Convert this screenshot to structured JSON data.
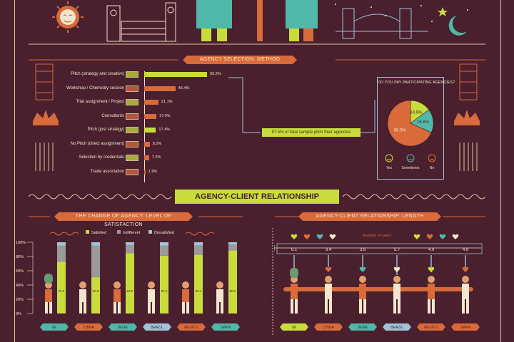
{
  "colors": {
    "bg": "#4a1f2e",
    "green": "#c8dc3c",
    "orange": "#d96a3a",
    "teal": "#4fb8a8",
    "cream": "#f2e6cc",
    "gray": "#9a9a9a",
    "blue": "#9fc4d8"
  },
  "method": {
    "title": "AGENCY SELECTION: METHOD",
    "items": [
      {
        "label": "Pitch (strategy and creative)",
        "value": 93.2,
        "text": "93.2%"
      },
      {
        "label": "Workshop / Chemistry session",
        "value": 46.4,
        "text": "46.4%"
      },
      {
        "label": "Trial assignment / Project",
        "value": 21.1,
        "text": "21.1%"
      },
      {
        "label": "Consultants",
        "value": 17.9,
        "text": "17.9%"
      },
      {
        "label": "Pitch (just strategy)",
        "value": 17.4,
        "text": "17.4%"
      },
      {
        "label": "No Pitch (direct assignment)",
        "value": 8.2,
        "text": "8.2%"
      },
      {
        "label": "Selection by credentials",
        "value": 7.2,
        "text": "7.2%"
      },
      {
        "label": "Trade association",
        "value": 1.9,
        "text": "1.9%"
      }
    ],
    "callout": "97.5% of total sample pitch their agencies"
  },
  "pay": {
    "title": "DO YOU PAY PARTICIPATING AGENCIES?",
    "slices": [
      {
        "name": "Yes",
        "value": 68.3,
        "text": "68.3%"
      },
      {
        "name": "Sometimes",
        "value": 14.9,
        "text": "14.9%"
      },
      {
        "name": "No",
        "value": 16.8,
        "text": "16.8%"
      }
    ],
    "legend": [
      "Yes",
      "Sometimes",
      "No"
    ]
  },
  "relationship": {
    "title": "AGENCY-CLIENT RELATIONSHIP"
  },
  "chart_data": [
    {
      "type": "bar",
      "title": "THE CHANGE OF AGENCY: LEVEL OF SATISFACTION",
      "categories": [
        "UK",
        "CHINA",
        "INDIA",
        "BRAZIL",
        "MEXICO",
        "SPAIN"
      ],
      "series": [
        {
          "name": "Satisfied",
          "values": [
            72.6,
            50.9,
            84.8,
            81.2,
            82.4,
            88.6
          ]
        },
        {
          "name": "Indifferent",
          "values": [
            19,
            33,
            8,
            10,
            10,
            5
          ]
        },
        {
          "name": "Dissatisfied",
          "values": [
            9,
            9,
            7,
            9,
            8,
            6
          ]
        }
      ],
      "ylim": [
        0,
        100
      ],
      "ticks": [
        "100%",
        "80%",
        "60%",
        "40%",
        "20%",
        "0%"
      ],
      "bar_labels": [
        "72.6",
        "50.9",
        "84.8",
        "81.2",
        "82.4",
        "88.6"
      ],
      "legend": [
        "Satisfied",
        "Indifferent",
        "Dissatisfied"
      ]
    },
    {
      "type": "bar",
      "title": "AGENCY-CLIENT RELATIONSHIP: LENGTH",
      "categories": [
        "UK",
        "CHINA",
        "INDIA",
        "BRAZIL",
        "MEXICO",
        "SPAIN"
      ],
      "values": [
        6.1,
        3.4,
        3.6,
        5.7,
        4.9,
        4.8
      ],
      "labels": [
        "6.1",
        "3.4",
        "3.6",
        "5.7",
        "4.9",
        "4.8"
      ],
      "legend_text": "Number of years"
    }
  ]
}
